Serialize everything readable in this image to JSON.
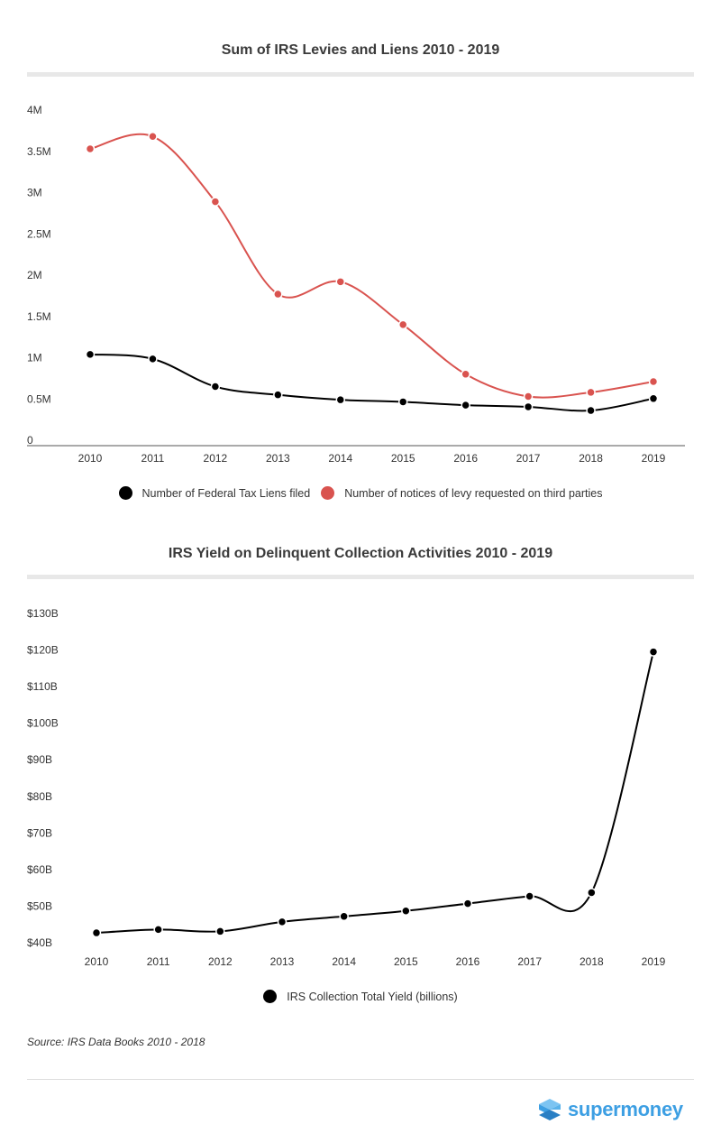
{
  "chart_data": [
    {
      "type": "line",
      "title": "Sum of IRS Levies and Liens 2010 - 2019",
      "categories": [
        "2010",
        "2011",
        "2012",
        "2013",
        "2014",
        "2015",
        "2016",
        "2017",
        "2018",
        "2019"
      ],
      "y_ticks": [
        "4M",
        "3.5M",
        "3M",
        "2.5M",
        "2M",
        "1.5M",
        "1M",
        "0.5M",
        "0"
      ],
      "ylim": [
        0,
        4000000
      ],
      "grid": false,
      "legend_position": "bottom",
      "series": [
        {
          "name": "Number of Federal Tax Liens filed",
          "color": "#000000",
          "values": [
            1040000,
            985000,
            650000,
            550000,
            490000,
            465000,
            425000,
            405000,
            360000,
            505000
          ]
        },
        {
          "name": "Number of notices of levy requested on third parties",
          "color": "#d9534f",
          "values": [
            3530000,
            3680000,
            2890000,
            1770000,
            1920000,
            1400000,
            800000,
            530000,
            580000,
            710000
          ]
        }
      ]
    },
    {
      "type": "line",
      "title": "IRS Yield on Delinquent Collection Activities 2010 - 2019",
      "categories": [
        "2010",
        "2011",
        "2012",
        "2013",
        "2014",
        "2015",
        "2016",
        "2017",
        "2018",
        "2019"
      ],
      "y_ticks": [
        "$130B",
        "$120B",
        "$110B",
        "$100B",
        "$90B",
        "$80B",
        "$70B",
        "$60B",
        "$50B",
        "$40B"
      ],
      "ylim": [
        40,
        130
      ],
      "grid": false,
      "legend_position": "bottom",
      "series": [
        {
          "name": "IRS Collection Total Yield (billions)",
          "color": "#000000",
          "values": [
            42.7,
            43.6,
            43.1,
            45.7,
            47.2,
            48.7,
            50.7,
            52.7,
            53.7,
            119.5
          ]
        }
      ]
    }
  ],
  "source": "Source: IRS Data Books 2010 - 2018",
  "logo_text": "supermoney",
  "colors": {
    "accent": "#3d9fe3",
    "levy": "#d9534f",
    "lien": "#000000"
  }
}
